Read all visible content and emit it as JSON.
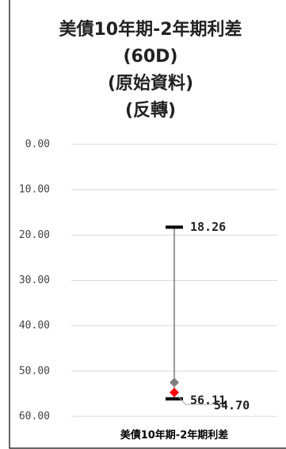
{
  "chart_data": {
    "type": "range",
    "title": [
      "美債10年期-2年期利差",
      "(60D)",
      "(原始資料)",
      "(反轉)"
    ],
    "categories": [
      "美債10年期-2年期利差"
    ],
    "ylim": [
      0,
      60
    ],
    "reversed": true,
    "grid": true,
    "yticks": [
      {
        "value": 0,
        "label": "0.00"
      },
      {
        "value": 10,
        "label": "10.00"
      },
      {
        "value": 20,
        "label": "20.00"
      },
      {
        "value": 30,
        "label": "30.00"
      },
      {
        "value": 40,
        "label": "40.00"
      },
      {
        "value": 50,
        "label": "50.00"
      },
      {
        "value": 60,
        "label": "60.00"
      }
    ],
    "series": [
      {
        "marker": "dash",
        "color": "#000000",
        "values": [
          18.26
        ],
        "labeled": true
      },
      {
        "marker": "dash",
        "color": "#000000",
        "values": [
          56.11
        ],
        "labeled": true
      },
      {
        "marker": "diamond",
        "color": "#7f7f7f",
        "values": [
          52.5
        ],
        "labeled": false
      },
      {
        "marker": "diamond",
        "color": "#ff0000",
        "values": [
          54.7
        ],
        "value_labels": [
          "54.70"
        ],
        "labeled": true
      }
    ]
  }
}
